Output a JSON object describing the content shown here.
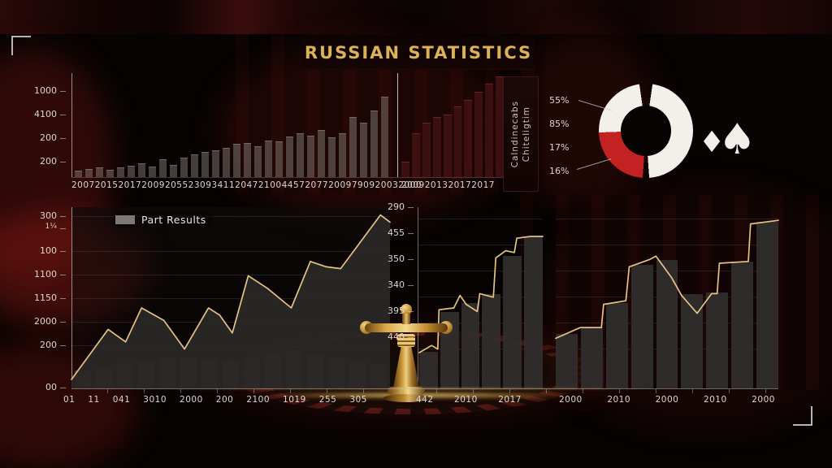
{
  "title": "RUSSIAN STATISTICS",
  "legend": {
    "label": "Part Results"
  },
  "side_panel": {
    "line1": "Chiteligtim",
    "line2": "Calndinecabs"
  },
  "suits": {
    "diamond": "♦",
    "spade": "♠"
  },
  "colors": {
    "gold": "#e6c383",
    "donut_white": "#f3efe9",
    "donut_red": "#c32222",
    "bar_gray": "#807a76",
    "bar_dark_red": "#3c1010"
  },
  "donut": {
    "labels": [
      {
        "t": "55%",
        "y": 7
      },
      {
        "t": "85%",
        "y": 36
      },
      {
        "t": "17%",
        "y": 65
      },
      {
        "t": "16%",
        "y": 94
      }
    ],
    "segments": [
      {
        "color": "rgba(0,0,0,0)",
        "from": 0,
        "to": 8
      },
      {
        "color": "#f3efe9",
        "from": 8,
        "to": 176
      },
      {
        "color": "rgba(0,0,0,0)",
        "from": 176,
        "to": 184
      },
      {
        "color": "#c32222",
        "from": 184,
        "to": 268
      },
      {
        "color": "#f3efe9",
        "from": 268,
        "to": 352
      },
      {
        "color": "rgba(0,0,0,0)",
        "from": 352,
        "to": 360
      }
    ]
  },
  "chart_data": [
    {
      "id": "tl",
      "type": "bar",
      "title": "",
      "ylabel": "",
      "y_ticks": [
        {
          "t": "1000",
          "y": 15
        },
        {
          "t": "4100",
          "y": 44
        },
        {
          "t": "200",
          "y": 73
        },
        {
          "t": "200",
          "y": 102
        }
      ],
      "x_ticks": [
        "2007",
        "2015",
        "2017",
        "2009",
        "2055",
        "2309",
        "3411",
        "2047",
        "2100",
        "4457",
        "2077",
        "2009",
        "7909",
        "2003",
        "2000"
      ],
      "values": [
        0.06,
        0.08,
        0.09,
        0.07,
        0.09,
        0.11,
        0.13,
        0.1,
        0.17,
        0.12,
        0.19,
        0.22,
        0.24,
        0.26,
        0.28,
        0.32,
        0.33,
        0.3,
        0.35,
        0.34,
        0.39,
        0.42,
        0.4,
        0.45,
        0.38,
        0.42,
        0.58,
        0.52,
        0.64,
        0.77
      ]
    },
    {
      "id": "tm",
      "type": "bar",
      "x_ticks": [
        "2009",
        "2013",
        "2017",
        "2017"
      ],
      "values": [
        0.15,
        0.42,
        0.52,
        0.58,
        0.6,
        0.68,
        0.74,
        0.82,
        0.9,
        0.97
      ]
    },
    {
      "id": "bl",
      "type": "area",
      "legend": "Part Results",
      "grid": true,
      "y_ticks": [
        {
          "t": "300",
          "y": 4
        },
        {
          "t": "1¼",
          "y": 19,
          "small": true
        },
        {
          "t": "100",
          "y": 47
        },
        {
          "t": "1100",
          "y": 76
        },
        {
          "t": "1150",
          "y": 105
        },
        {
          "t": "2000",
          "y": 134
        },
        {
          "t": "200",
          "y": 163
        },
        {
          "t": "00",
          "y": 215
        }
      ],
      "x_ticks": [
        "01",
        "11",
        "041",
        "3010",
        "2000",
        "200",
        "2100",
        "1019",
        "255",
        "305"
      ],
      "line": [
        [
          0,
          0.05
        ],
        [
          0.115,
          0.33
        ],
        [
          0.17,
          0.26
        ],
        [
          0.22,
          0.45
        ],
        [
          0.29,
          0.38
        ],
        [
          0.355,
          0.22
        ],
        [
          0.43,
          0.45
        ],
        [
          0.465,
          0.41
        ],
        [
          0.505,
          0.31
        ],
        [
          0.555,
          0.63
        ],
        [
          0.615,
          0.56
        ],
        [
          0.69,
          0.45
        ],
        [
          0.75,
          0.71
        ],
        [
          0.8,
          0.68
        ],
        [
          0.845,
          0.67
        ],
        [
          0.97,
          0.97
        ],
        [
          1.0,
          0.93
        ]
      ],
      "area": true,
      "volume": [
        0.45,
        0.55,
        0.65,
        0.7,
        0.8,
        0.8,
        0.75,
        0.72,
        0.8,
        0.88,
        1.0,
        0.85,
        0.78,
        0.7,
        0.6
      ]
    },
    {
      "id": "bm",
      "type": "bar-line",
      "grid": true,
      "y_ticks": [
        {
          "t": "290",
          "y": 0
        },
        {
          "t": "455",
          "y": 32
        },
        {
          "t": "350",
          "y": 64
        },
        {
          "t": "340",
          "y": 96
        },
        {
          "t": "395",
          "y": 128
        },
        {
          "t": "440",
          "y": 160
        }
      ],
      "x_ticks": [
        "442",
        "2010",
        "2017"
      ],
      "values": [
        0.2,
        0.42,
        0.47,
        0.52,
        0.73,
        0.84
      ],
      "line": [
        [
          0,
          0.2
        ],
        [
          0.1,
          0.24
        ],
        [
          0.15,
          0.22
        ],
        [
          0.16,
          0.44
        ],
        [
          0.28,
          0.45
        ],
        [
          0.33,
          0.52
        ],
        [
          0.38,
          0.47
        ],
        [
          0.47,
          0.43
        ],
        [
          0.49,
          0.53
        ],
        [
          0.6,
          0.51
        ],
        [
          0.62,
          0.73
        ],
        [
          0.7,
          0.77
        ],
        [
          0.77,
          0.76
        ],
        [
          0.79,
          0.84
        ],
        [
          0.9,
          0.85
        ],
        [
          1,
          0.85
        ]
      ],
      "area": false
    },
    {
      "id": "br",
      "type": "bar-line",
      "grid": true,
      "y_ticks": [],
      "x_ticks": [
        "2000",
        "2010",
        "2000",
        "2010",
        "2000"
      ],
      "values": [
        0.3,
        0.34,
        0.47,
        0.68,
        0.71,
        0.52,
        0.53,
        0.7,
        0.92
      ],
      "line": [
        [
          0,
          0.28
        ],
        [
          0.11,
          0.34
        ],
        [
          0.205,
          0.34
        ],
        [
          0.215,
          0.47
        ],
        [
          0.315,
          0.49
        ],
        [
          0.33,
          0.68
        ],
        [
          0.42,
          0.72
        ],
        [
          0.45,
          0.74
        ],
        [
          0.52,
          0.62
        ],
        [
          0.565,
          0.52
        ],
        [
          0.635,
          0.42
        ],
        [
          0.7,
          0.53
        ],
        [
          0.725,
          0.53
        ],
        [
          0.735,
          0.7
        ],
        [
          0.865,
          0.71
        ],
        [
          0.875,
          0.92
        ],
        [
          1,
          0.94
        ]
      ],
      "area": false
    }
  ]
}
